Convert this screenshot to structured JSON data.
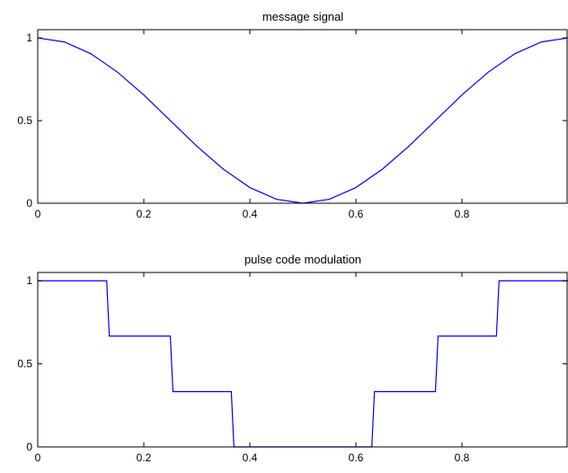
{
  "chart_data": [
    {
      "type": "line",
      "title": "message signal",
      "xlabel": "",
      "ylabel": "",
      "xlim": [
        0,
        1
      ],
      "ylim": [
        0,
        1.05
      ],
      "xticks": [
        0,
        0.2,
        0.4,
        0.6,
        0.8
      ],
      "xtick_labels": [
        "0",
        "0.2",
        "0.4",
        "0.6",
        "0.8"
      ],
      "yticks": [
        0,
        0.5,
        1
      ],
      "ytick_labels": [
        "0",
        "0.5",
        "1"
      ],
      "grid": false,
      "series": [
        {
          "color": "#0000ff",
          "x": [
            0,
            0.05,
            0.1,
            0.15,
            0.2,
            0.25,
            0.3,
            0.35,
            0.4,
            0.45,
            0.5,
            0.55,
            0.6,
            0.65,
            0.7,
            0.75,
            0.8,
            0.85,
            0.9,
            0.95,
            1
          ],
          "y": [
            1,
            0.976,
            0.905,
            0.794,
            0.655,
            0.5,
            0.345,
            0.206,
            0.095,
            0.024,
            0,
            0.024,
            0.095,
            0.206,
            0.345,
            0.5,
            0.655,
            0.794,
            0.905,
            0.976,
            1
          ]
        }
      ]
    },
    {
      "type": "line",
      "title": "pulse code modulation",
      "xlabel": "",
      "ylabel": "",
      "xlim": [
        0,
        1
      ],
      "ylim": [
        0,
        1.05
      ],
      "xticks": [
        0,
        0.2,
        0.4,
        0.6,
        0.8
      ],
      "xtick_labels": [
        "0",
        "0.2",
        "0.4",
        "0.6",
        "0.8"
      ],
      "yticks": [
        0,
        0.5,
        1
      ],
      "ytick_labels": [
        "0",
        "0.5",
        "1"
      ],
      "grid": false,
      "series": [
        {
          "color": "#0000ff",
          "step": true,
          "x": [
            0,
            0.13,
            0.135,
            0.25,
            0.255,
            0.365,
            0.37,
            0.63,
            0.635,
            0.75,
            0.755,
            0.865,
            0.87,
            1
          ],
          "y": [
            1,
            1,
            0.667,
            0.667,
            0.333,
            0.333,
            0,
            0,
            0.333,
            0.333,
            0.667,
            0.667,
            1,
            1
          ]
        }
      ]
    }
  ]
}
